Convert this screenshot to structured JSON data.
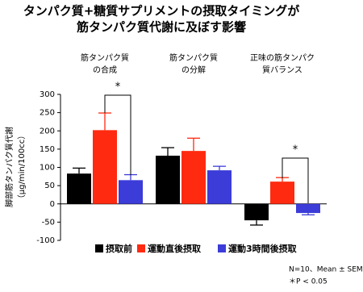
{
  "chart_data": {
    "type": "bar",
    "title": [
      "タンパク質+糖質サプリメントの摂取タイミングが",
      "筋タンパク質代謝に及ぼす影響"
    ],
    "y_label": [
      "脚部筋タンパク質代謝",
      "（μg/min/100cc）"
    ],
    "categories": [
      [
        "筋タンパク質",
        "の合成"
      ],
      [
        "筋タンパク質",
        "の分解"
      ],
      [
        "正味の筋タンパク",
        "質バランス"
      ]
    ],
    "series": [
      {
        "name": "摂取前",
        "color": "#000000",
        "values": [
          83,
          132,
          -45
        ],
        "errors": [
          15,
          22,
          13
        ]
      },
      {
        "name": "運動直後摂取",
        "color": "#ff2a10",
        "values": [
          202,
          145,
          61
        ],
        "errors": [
          47,
          35,
          11
        ]
      },
      {
        "name": "運動3時間後摂取",
        "color": "#3c3cd8",
        "values": [
          65,
          92,
          -25
        ],
        "errors": [
          15,
          11,
          5
        ]
      }
    ],
    "ylim": [
      -100,
      300
    ],
    "yticks": [
      -100,
      -50,
      0,
      50,
      100,
      150,
      200,
      250,
      300
    ],
    "significance": [
      "*",
      "*"
    ],
    "notes": [
      "N=10、Mean ± SEM",
      "＊P < 0.05"
    ]
  }
}
